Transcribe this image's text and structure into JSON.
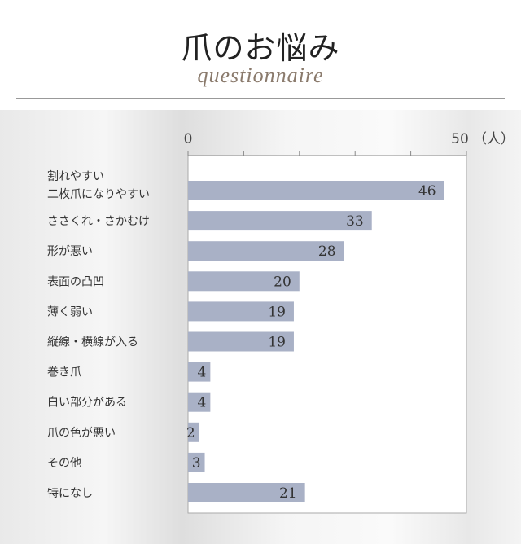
{
  "header": {
    "title": "爪のお悩み",
    "subtitle": "questionnaire"
  },
  "chart_data": {
    "type": "bar",
    "orientation": "horizontal",
    "title": "",
    "xlabel": "",
    "ylabel": "",
    "unit": "（人）",
    "xlim": [
      0,
      50
    ],
    "ticks": [
      0,
      10,
      20,
      30,
      40,
      50
    ],
    "tick_labels": [
      "0",
      "50"
    ],
    "categories": [
      "割れやすい\n二枚爪になりやすい",
      "ささくれ・さかむけ",
      "形が悪い",
      "表面の凸凹",
      "薄く弱い",
      "縦線・横線が入る",
      "巻き爪",
      "白い部分がある",
      "爪の色が悪い",
      "その他",
      "特になし"
    ],
    "values": [
      46,
      33,
      28,
      20,
      19,
      19,
      4,
      4,
      2,
      3,
      21
    ],
    "grid": false,
    "bar_color": "#a9b1c6"
  }
}
